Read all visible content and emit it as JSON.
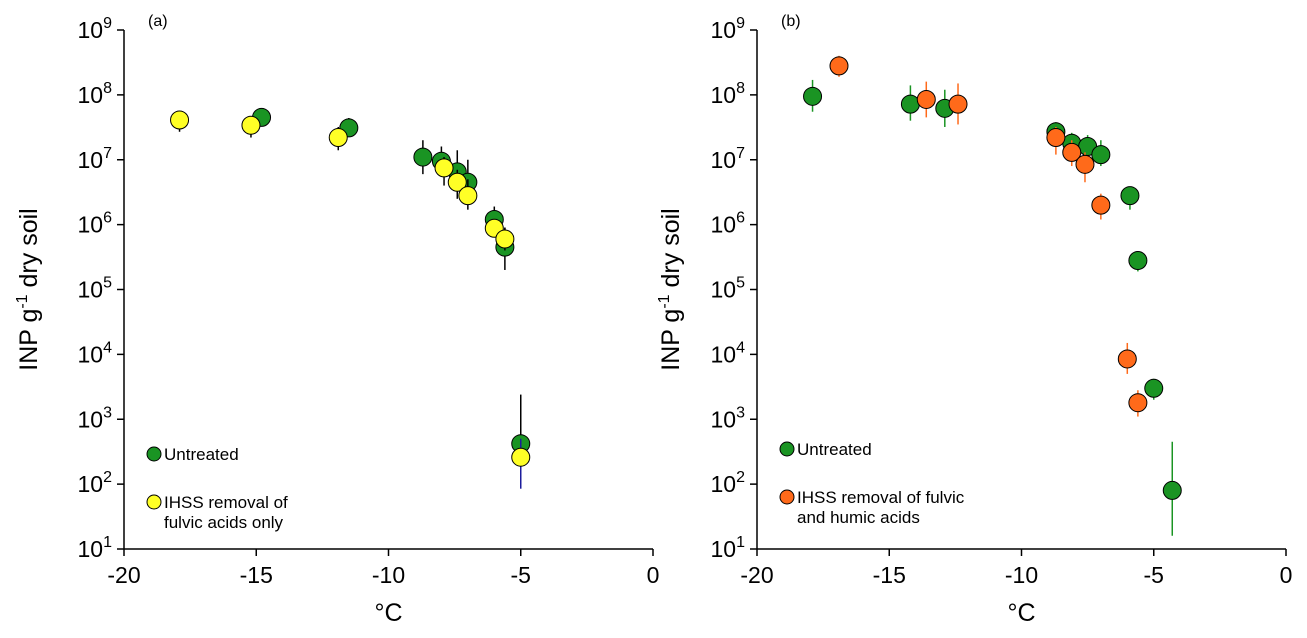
{
  "chart_data": [
    {
      "type": "scatter",
      "panel_label": "(a)",
      "xlabel": "°C",
      "ylabel": "INP g-1 dry soil",
      "ylabel_parts": {
        "main": "INP g",
        "sup": "-1",
        "rest": " dry soil"
      },
      "xlim": [
        -20,
        0
      ],
      "ylim_log10": [
        1,
        9
      ],
      "y_scale": "log",
      "grid": false,
      "legend_placement": "bottom-left",
      "x_ticks": [
        -20,
        -15,
        -10,
        -5,
        0
      ],
      "y_tick_exponents": [
        1,
        2,
        3,
        4,
        5,
        6,
        7,
        8,
        9
      ],
      "series": [
        {
          "name": "Untreated",
          "color": "#1a9423",
          "error_color": "#000000",
          "points": [
            {
              "x": -14.8,
              "y": 45000000,
              "lo": 38000000,
              "hi": 54000000
            },
            {
              "x": -11.5,
              "y": 31000000,
              "lo": 24000000,
              "hi": 44000000
            },
            {
              "x": -8.7,
              "y": 11000000,
              "lo": 6000000,
              "hi": 20000000
            },
            {
              "x": -8.0,
              "y": 9500000,
              "lo": 5500000,
              "hi": 16000000
            },
            {
              "x": -7.4,
              "y": 6500000,
              "lo": 3500000,
              "hi": 14000000
            },
            {
              "x": -7.0,
              "y": 4500000,
              "lo": 2000000,
              "hi": 10000000
            },
            {
              "x": -6.0,
              "y": 1200000,
              "lo": 700000,
              "hi": 1900000
            },
            {
              "x": -5.6,
              "y": 450000,
              "lo": 200000,
              "hi": 900000
            },
            {
              "x": -5.0,
              "y": 420,
              "lo": 90,
              "hi": 2400
            }
          ]
        },
        {
          "name": "IHSS removal of fulvic acids only",
          "legend_lines": [
            "IHSS removal of",
            "fulvic acids only"
          ],
          "color": "#ffff26",
          "error_color": "#000000",
          "points": [
            {
              "x": -17.9,
              "y": 41000000,
              "lo": 27000000,
              "hi": 50000000
            },
            {
              "x": -15.2,
              "y": 34000000,
              "lo": 22000000,
              "hi": 42000000
            },
            {
              "x": -11.9,
              "y": 22000000,
              "lo": 14000000,
              "hi": 32000000
            },
            {
              "x": -7.9,
              "y": 7500000,
              "lo": 4000000,
              "hi": 11000000
            },
            {
              "x": -7.4,
              "y": 4500000,
              "lo": 2500000,
              "hi": 7000000
            },
            {
              "x": -7.0,
              "y": 2800000,
              "lo": 1700000,
              "hi": 5000000
            },
            {
              "x": -6.0,
              "y": 880000,
              "lo": 650000,
              "hi": 1200000
            },
            {
              "x": -5.6,
              "y": 600000,
              "lo": 400000,
              "hi": 900000
            },
            {
              "x": -5.0,
              "y": 260,
              "lo": 85,
              "hi": 500,
              "error_color": "#1c1c9c"
            }
          ]
        }
      ]
    },
    {
      "type": "scatter",
      "panel_label": "(b)",
      "xlabel": "°C",
      "ylabel": "INP g-1 dry soil",
      "ylabel_parts": {
        "main": "INP g",
        "sup": "-1",
        "rest": " dry soil"
      },
      "xlim": [
        -20,
        0
      ],
      "ylim_log10": [
        1,
        9
      ],
      "y_scale": "log",
      "grid": false,
      "legend_placement": "bottom-left",
      "x_ticks": [
        -20,
        -15,
        -10,
        -5,
        0
      ],
      "y_tick_exponents": [
        1,
        2,
        3,
        4,
        5,
        6,
        7,
        8,
        9
      ],
      "series": [
        {
          "name": "Untreated",
          "color": "#1a9423",
          "error_color": "#1a9423",
          "points": [
            {
              "x": -17.9,
              "y": 95000000,
              "lo": 55000000,
              "hi": 170000000
            },
            {
              "x": -14.2,
              "y": 72000000,
              "lo": 40000000,
              "hi": 140000000
            },
            {
              "x": -12.9,
              "y": 62000000,
              "lo": 32000000,
              "hi": 120000000
            },
            {
              "x": -8.7,
              "y": 27000000,
              "lo": 18000000,
              "hi": 38000000
            },
            {
              "x": -8.1,
              "y": 18000000,
              "lo": 12000000,
              "hi": 26000000
            },
            {
              "x": -7.5,
              "y": 16000000,
              "lo": 10000000,
              "hi": 24000000
            },
            {
              "x": -7.0,
              "y": 12000000,
              "lo": 8000000,
              "hi": 20000000
            },
            {
              "x": -5.9,
              "y": 2800000,
              "lo": 1700000,
              "hi": 3800000
            },
            {
              "x": -5.6,
              "y": 280000,
              "lo": 190000,
              "hi": 350000
            },
            {
              "x": -5.0,
              "y": 3000,
              "lo": 2000,
              "hi": 4200
            },
            {
              "x": -4.3,
              "y": 80,
              "lo": 16,
              "hi": 450
            }
          ]
        },
        {
          "name": "IHSS removal of fulvic and humic acids",
          "legend_lines": [
            "IHSS removal of fulvic",
            "and humic acids"
          ],
          "color": "#ff6a1a",
          "error_color": "#ff6a1a",
          "points": [
            {
              "x": -16.9,
              "y": 280000000,
              "lo": 190000000,
              "hi": 400000000
            },
            {
              "x": -13.6,
              "y": 85000000,
              "lo": 45000000,
              "hi": 160000000
            },
            {
              "x": -12.4,
              "y": 72000000,
              "lo": 35000000,
              "hi": 150000000
            },
            {
              "x": -8.7,
              "y": 22000000,
              "lo": 12000000,
              "hi": 32000000
            },
            {
              "x": -8.1,
              "y": 13000000,
              "lo": 8000000,
              "hi": 20000000
            },
            {
              "x": -7.6,
              "y": 8500000,
              "lo": 4500000,
              "hi": 13000000
            },
            {
              "x": -7.0,
              "y": 2000000,
              "lo": 1200000,
              "hi": 3000000
            },
            {
              "x": -6.0,
              "y": 8500,
              "lo": 5000,
              "hi": 15000
            },
            {
              "x": -5.6,
              "y": 1800,
              "lo": 1100,
              "hi": 2800
            }
          ]
        }
      ]
    }
  ]
}
